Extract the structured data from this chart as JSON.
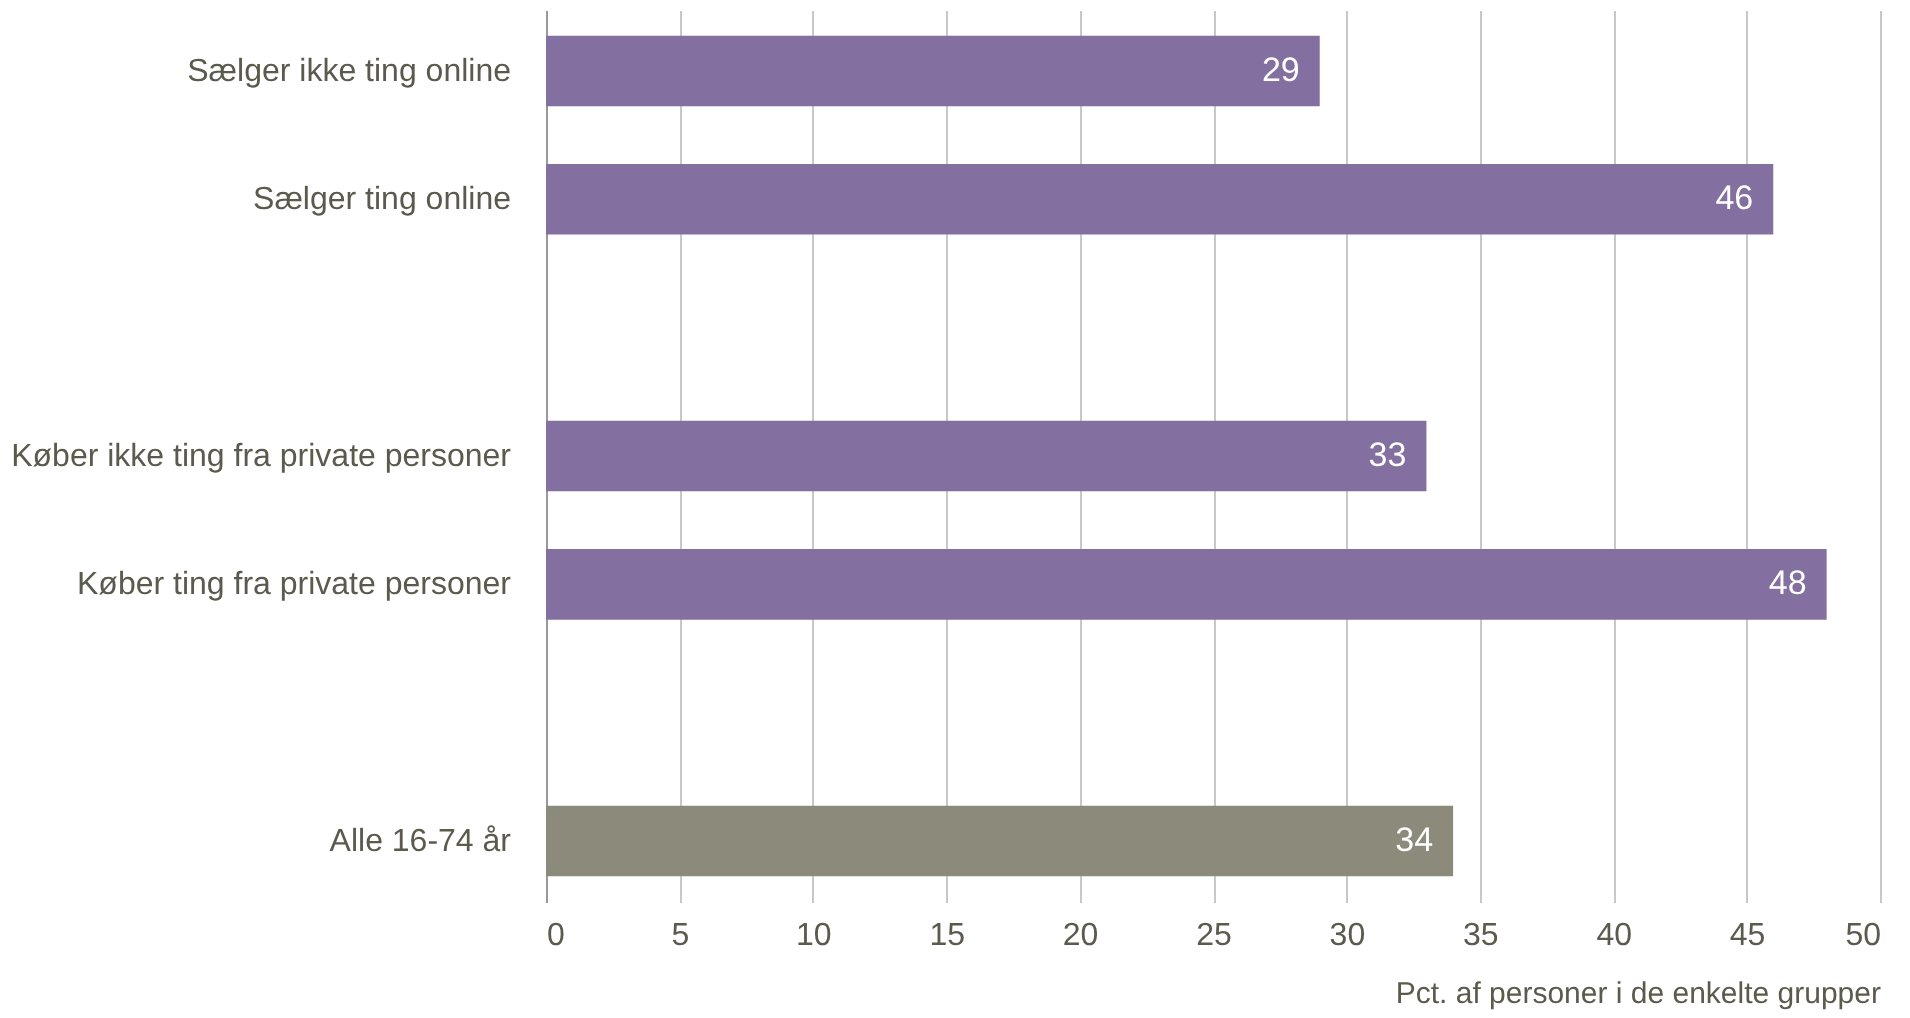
{
  "chart_data": {
    "type": "bar",
    "orientation": "horizontal",
    "categories": [
      "Sælger ikke ting online",
      "Sælger ting online",
      null,
      "Køber ikke ting fra private personer",
      "Køber ting fra private personer",
      null,
      "Alle 16-74 år"
    ],
    "values": [
      29,
      46,
      null,
      33,
      48,
      null,
      34
    ],
    "colors": [
      "#8470a0",
      "#8470a0",
      null,
      "#8470a0",
      "#8470a0",
      null,
      "#8c8b7b"
    ],
    "xlabel": "Pct. af personer i de enkelte grupper",
    "xlim": [
      0,
      50
    ],
    "xticks": [
      0,
      5,
      10,
      15,
      20,
      25,
      30,
      35,
      40,
      45,
      50
    ],
    "grid": "x",
    "data_labels": true,
    "legend": false
  }
}
